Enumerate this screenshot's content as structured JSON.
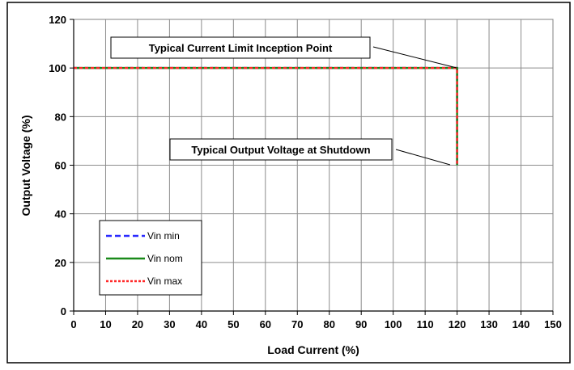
{
  "chart_data": {
    "type": "line",
    "title": "",
    "xlabel": "Load Current (%)",
    "ylabel": "Output Voltage (%)",
    "xlim": [
      0,
      150
    ],
    "ylim": [
      0,
      120
    ],
    "x_ticks": [
      0,
      10,
      20,
      30,
      40,
      50,
      60,
      70,
      80,
      90,
      100,
      110,
      120,
      130,
      140,
      150
    ],
    "y_ticks": [
      0,
      20,
      40,
      60,
      80,
      100,
      120
    ],
    "grid": true,
    "legend_position": "bottom-left",
    "series": [
      {
        "name": "Vin min",
        "color": "#2b2bff",
        "dash": "dashed",
        "x": [
          0,
          120,
          120
        ],
        "y": [
          100,
          100,
          60
        ]
      },
      {
        "name": "Vin nom",
        "color": "#1a8a1a",
        "dash": "solid",
        "x": [
          0,
          120,
          120
        ],
        "y": [
          100,
          100,
          60
        ]
      },
      {
        "name": "Vin max",
        "color": "#ff2a2a",
        "dash": "dotted",
        "x": [
          0,
          120,
          120
        ],
        "y": [
          100,
          100,
          60
        ]
      }
    ],
    "annotations": [
      {
        "text": "Typical Current Limit Inception Point",
        "point": [
          120,
          100
        ]
      },
      {
        "text": "Typical Output Voltage at Shutdown",
        "point": [
          120,
          60
        ]
      }
    ]
  }
}
